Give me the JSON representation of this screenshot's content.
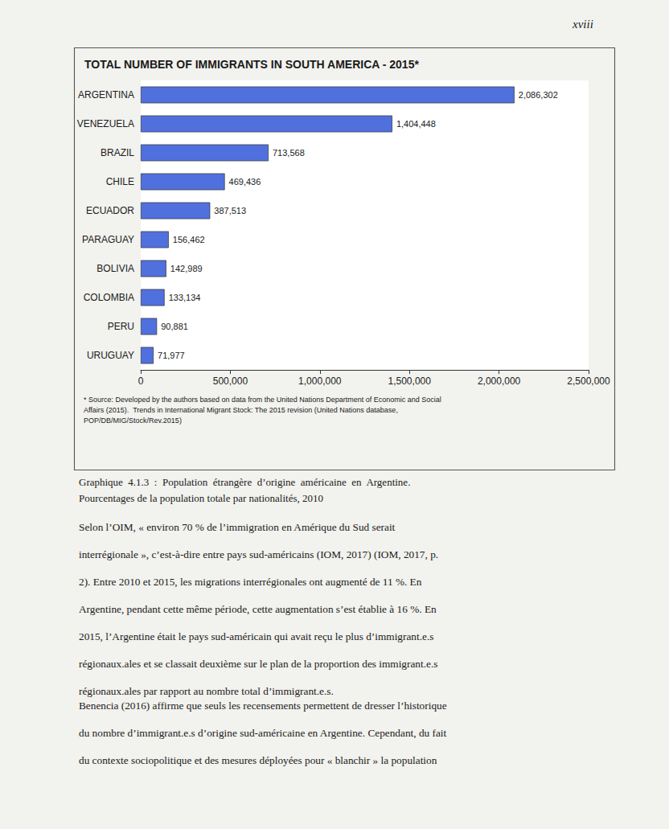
{
  "chart_data": {
    "type": "bar",
    "orientation": "horizontal",
    "title": "TOTAL NUMBER OF IMMIGRANTS IN SOUTH AMERICA - 2015*",
    "categories": [
      "ARGENTINA",
      "VENEZUELA",
      "BRAZIL",
      "CHILE",
      "ECUADOR",
      "PARAGUAY",
      "BOLIVIA",
      "COLOMBIA",
      "PERU",
      "URUGUAY"
    ],
    "values": [
      2086302,
      1404448,
      713568,
      469436,
      387513,
      156462,
      142989,
      133134,
      90881,
      71977
    ],
    "value_labels": [
      "2,086,302",
      "1,404,448",
      "713,568",
      "469,436",
      "387,513",
      "156,462",
      "142,989",
      "133,134",
      "90,881",
      "71,977"
    ],
    "data_labels": true,
    "xlim": [
      0,
      2500000
    ],
    "xticks": [
      0,
      {
        "value": 500000,
        "label": "500,000"
      },
      {
        "value": 1000000,
        "label": "1,000,000"
      },
      {
        "value": 1500000,
        "label": "1,500,000"
      },
      {
        "value": 2000000,
        "label": "2,000,000"
      },
      {
        "value": 2500000,
        "label": "2,500,000"
      }
    ],
    "grid": false,
    "annotations": [
      "xviii",
      "* Source: Developed by the authors based on data from the United Nations Department of Economic and Social\nAffairs (2015).  Trends in International Migrant Stock: The 2015 revision (United Nations database,\nPOP/DB/MIG/Stock/Rev.2015)",
      "Graphique  4.1.3  :  Population  étrangère  d’origine  américaine  en  Argentine.",
      "Pourcentages de la population totale par nationalités, 2010",
      "Selon l’OIM, « environ 70 % de l’immigration en Amérique du Sud serait",
      "interrégionale », c’est-à-dire entre pays sud-américains (IOM, 2017) (IOM, 2017, p.",
      "2). Entre 2010 et 2015, les migrations interrégionales ont augmenté de 11 %. En",
      "Argentine, pendant cette même période, cette augmentation s’est établie à 16 %. En",
      "2015, l’Argentine était le pays sud-américain qui avait reçu le plus d’immigrant.e.s",
      "régionaux.ales et se classait deuxième sur le plan de la proportion des immigrant.e.s",
      "régionaux.ales par rapport au nombre total d’immigrant.e.s.",
      "Benencia (2016) affirme que seuls les recensements permettent de dresser l’historique",
      "du nombre d’immigrant.e.s d’origine sud-américaine en Argentine. Cependant, du fait",
      "du contexte sociopolitique et des mesures déployées pour « blanchir » la population"
    ]
  }
}
